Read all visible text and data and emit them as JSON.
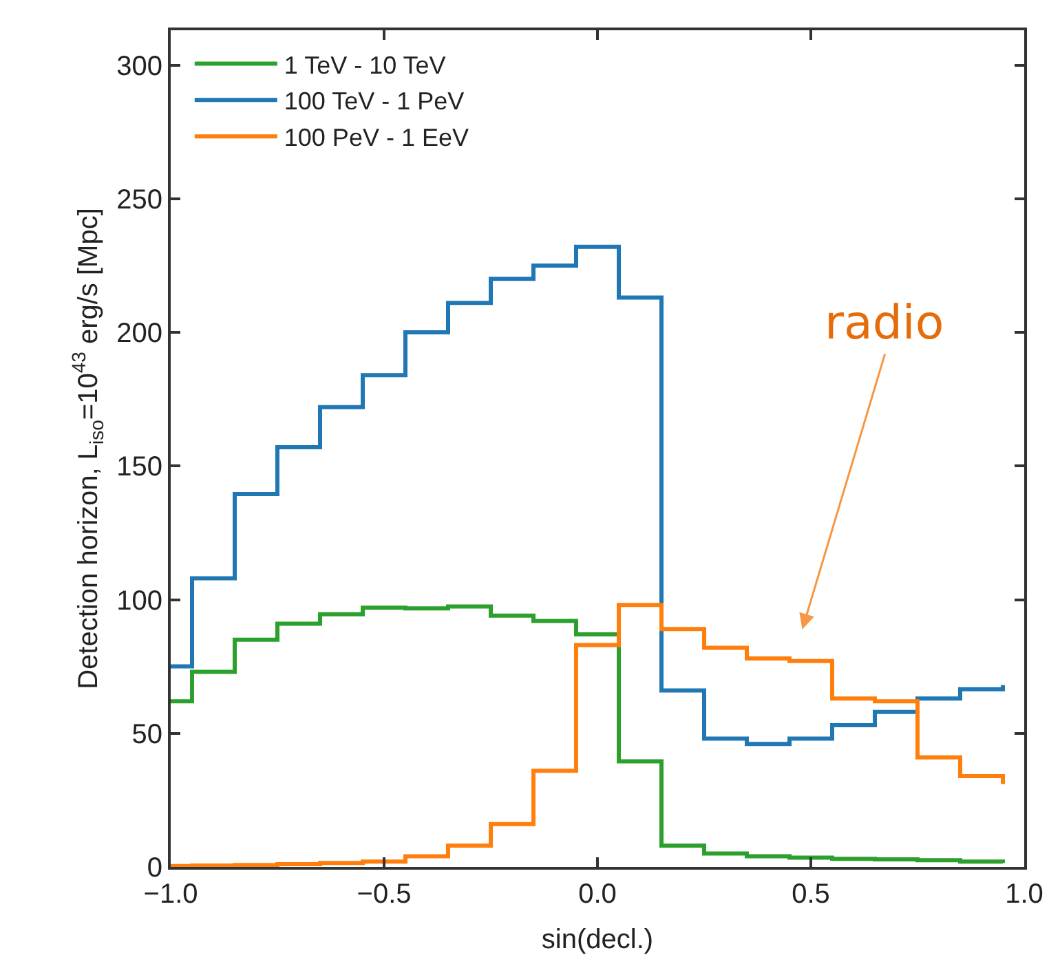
{
  "chart_data": {
    "type": "step",
    "xlabel": "sin(decl.)",
    "ylabel": "Detection horizon, L$_{iso}$=10$^{43}$ erg/s [Mpc]",
    "x": [
      -1.0,
      -0.95,
      -0.85,
      -0.75,
      -0.65,
      -0.55,
      -0.45,
      -0.35,
      -0.25,
      -0.15,
      -0.05,
      0.05,
      0.15,
      0.25,
      0.35,
      0.45,
      0.55,
      0.65,
      0.75,
      0.85,
      0.95
    ],
    "series": [
      {
        "name": "1 TeV - 10 TeV",
        "color": "#2ca02c",
        "values": [
          62,
          73,
          85,
          91,
          94.5,
          97,
          96.7,
          97.4,
          94,
          92,
          87,
          39.5,
          8,
          5,
          4,
          3.5,
          3,
          2.8,
          2.5,
          2,
          1.5
        ]
      },
      {
        "name": "100 TeV - 1 PeV",
        "color": "#1f77b4",
        "values": [
          75,
          108,
          139.5,
          157,
          172,
          184,
          200,
          211,
          220,
          225,
          232,
          213,
          66,
          48,
          46,
          48,
          53,
          58,
          63,
          66.5,
          68
        ]
      },
      {
        "name": "100 PeV - 1 EeV",
        "color": "#ff7f0e",
        "values": [
          0.3,
          0.5,
          0.7,
          1,
          1.5,
          2,
          4,
          8,
          16,
          36,
          83,
          98,
          89,
          82,
          78,
          77,
          63,
          62,
          41,
          34,
          31
        ]
      }
    ],
    "xlim": [
      -1.0,
      1.0
    ],
    "xticks": [
      {
        "value": -1.0,
        "label": "−1.0"
      },
      {
        "value": -0.5,
        "label": "−0.5"
      },
      {
        "value": 0.0,
        "label": "0.0"
      },
      {
        "value": 0.5,
        "label": "0.5"
      },
      {
        "value": 1.0,
        "label": "1.0"
      }
    ],
    "ylim": [
      0,
      313
    ],
    "yticks": [
      0,
      50,
      100,
      150,
      200,
      250,
      300
    ],
    "annotations": [
      "radio"
    ],
    "legend": "top left"
  }
}
